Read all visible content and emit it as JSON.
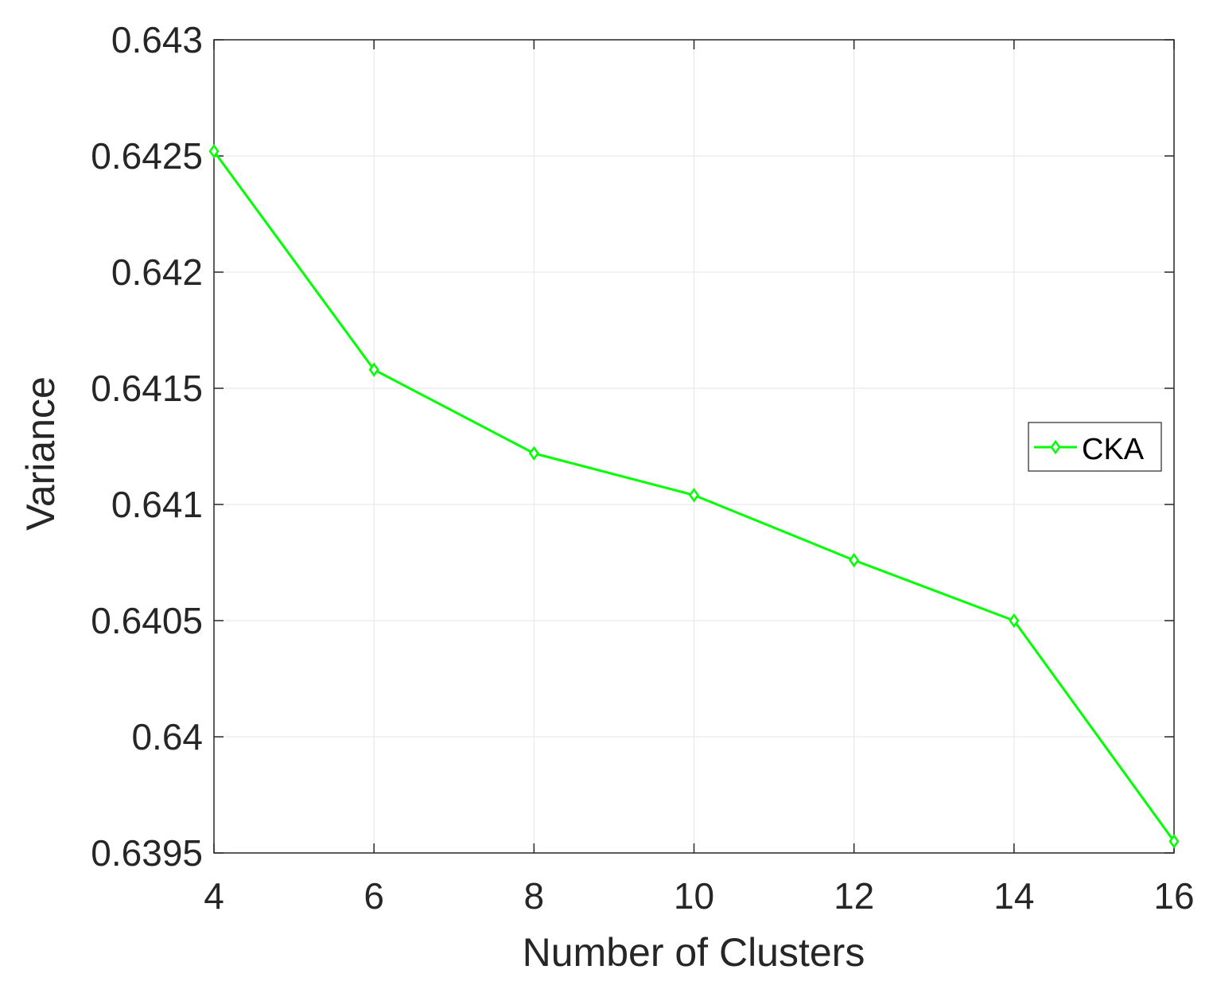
{
  "chart_data": {
    "type": "line",
    "xlabel": "Number of Clusters",
    "ylabel": "Variance",
    "xlim": [
      4,
      16
    ],
    "ylim": [
      0.6395,
      0.643
    ],
    "xticks": [
      4,
      6,
      8,
      10,
      12,
      14,
      16
    ],
    "xtick_labels": [
      "4",
      "6",
      "8",
      "10",
      "12",
      "14",
      "16"
    ],
    "yticks": [
      0.6395,
      0.64,
      0.6405,
      0.641,
      0.6415,
      0.642,
      0.6425,
      0.643
    ],
    "ytick_labels": [
      "0.6395",
      "0.64",
      "0.6405",
      "0.641",
      "0.6415",
      "0.642",
      "0.6425",
      "0.643"
    ],
    "grid": true,
    "legend_position": "right",
    "series": [
      {
        "name": "CKA",
        "color": "#00ff00",
        "marker": "diamond",
        "x": [
          4,
          6,
          8,
          10,
          12,
          14,
          16
        ],
        "y": [
          0.64252,
          0.64158,
          0.64122,
          0.64104,
          0.64076,
          0.6405,
          0.63955
        ]
      }
    ]
  }
}
